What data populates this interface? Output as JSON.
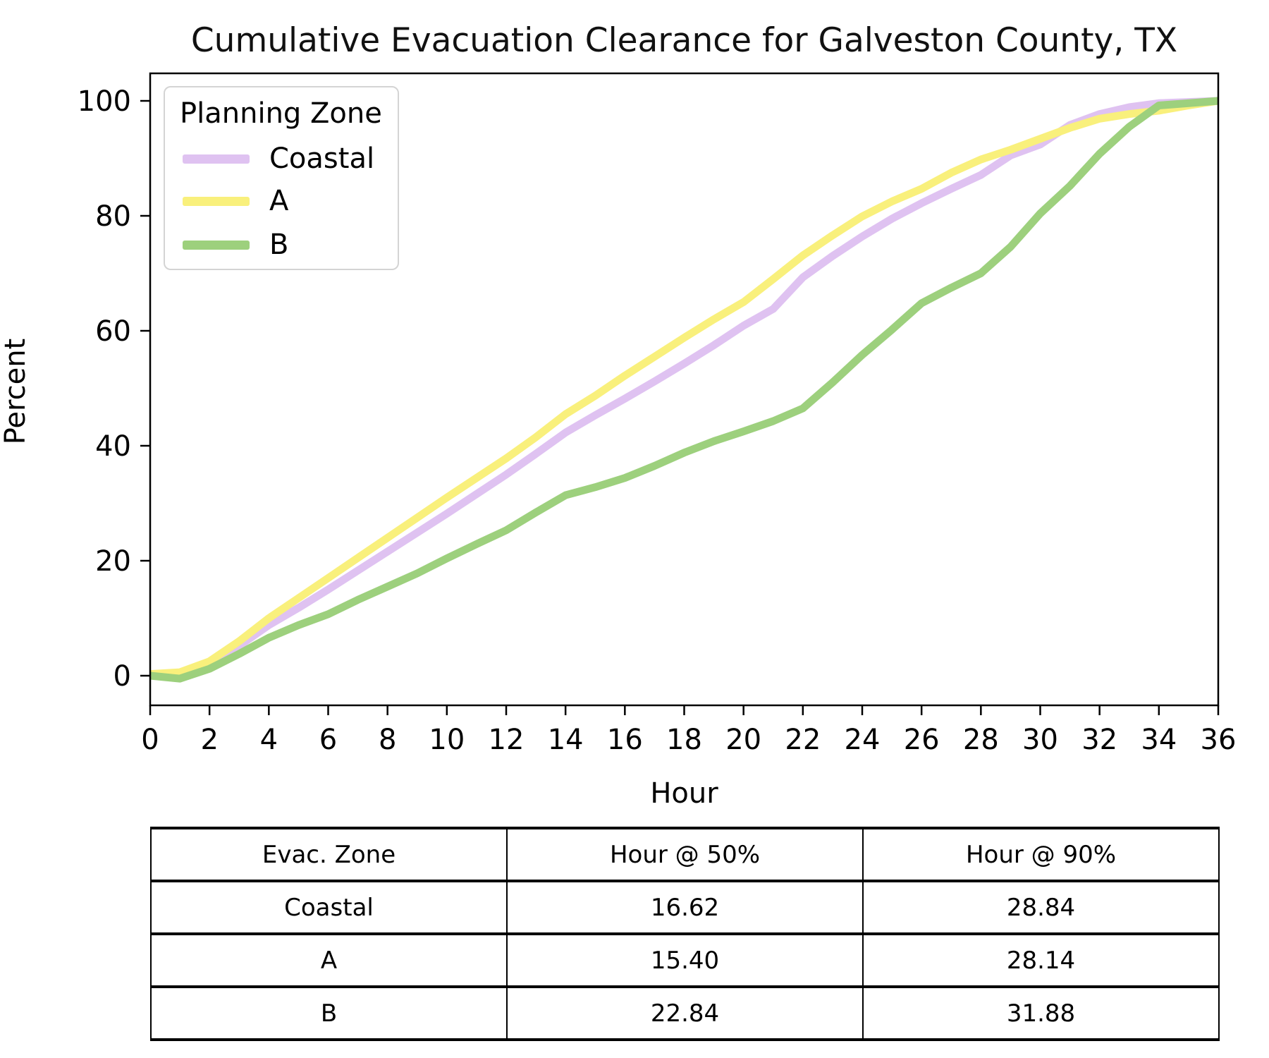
{
  "chart_data": {
    "type": "line",
    "title": "Cumulative Evacuation Clearance for Galveston County, TX",
    "xlabel": "Hour",
    "ylabel": "Percent",
    "xlim": [
      0,
      36
    ],
    "ylim": [
      0,
      100
    ],
    "x_ticks": [
      0,
      2,
      4,
      6,
      8,
      10,
      12,
      14,
      16,
      18,
      20,
      22,
      24,
      26,
      28,
      30,
      32,
      34,
      36
    ],
    "y_ticks": [
      0,
      20,
      40,
      60,
      80,
      100
    ],
    "grid": false,
    "legend": {
      "title": "Planning Zone",
      "position": "upper left"
    },
    "x": [
      0,
      1,
      2,
      3,
      4,
      5,
      6,
      7,
      8,
      9,
      10,
      11,
      12,
      13,
      14,
      15,
      16,
      17,
      18,
      19,
      20,
      21,
      22,
      23,
      24,
      25,
      26,
      27,
      28,
      29,
      30,
      31,
      32,
      33,
      34,
      35,
      36
    ],
    "series": [
      {
        "name": "Coastal",
        "color": "#dfc2f1",
        "values": [
          0.2,
          0.5,
          2.2,
          5.2,
          8.8,
          11.8,
          15.0,
          18.3,
          21.6,
          24.9,
          28.2,
          31.6,
          35.0,
          38.6,
          42.3,
          45.3,
          48.2,
          51.2,
          54.3,
          57.5,
          60.9,
          63.8,
          69.3,
          73.0,
          76.4,
          79.5,
          82.2,
          84.7,
          87.1,
          90.5,
          92.4,
          95.8,
          97.7,
          98.9,
          99.6,
          99.8,
          100.0
        ]
      },
      {
        "name": "A",
        "color": "#f9f07c",
        "values": [
          0.3,
          0.6,
          2.5,
          6.0,
          10.0,
          13.5,
          17.0,
          20.5,
          24.0,
          27.5,
          31.0,
          34.4,
          37.8,
          41.5,
          45.5,
          48.7,
          52.2,
          55.5,
          58.8,
          62.0,
          65.0,
          69.0,
          73.1,
          76.6,
          79.9,
          82.5,
          84.7,
          87.5,
          89.8,
          91.5,
          93.4,
          95.3,
          96.9,
          97.7,
          98.3,
          99.2,
          100.0
        ]
      },
      {
        "name": "B",
        "color": "#9dd07d",
        "values": [
          0.0,
          -0.5,
          1.2,
          3.8,
          6.6,
          8.8,
          10.7,
          13.2,
          15.5,
          17.8,
          20.4,
          22.9,
          25.3,
          28.4,
          31.4,
          32.8,
          34.4,
          36.5,
          38.8,
          40.8,
          42.5,
          44.3,
          46.5,
          51.0,
          55.8,
          60.2,
          64.8,
          67.5,
          70.0,
          74.6,
          80.4,
          85.2,
          90.8,
          95.5,
          99.2,
          99.6,
          100.0
        ]
      }
    ]
  },
  "table": {
    "headers": [
      "Evac. Zone",
      "Hour @ 50%",
      "Hour @ 90%"
    ],
    "rows": [
      [
        "Coastal",
        "16.62",
        "28.84"
      ],
      [
        "A",
        "15.40",
        "28.14"
      ],
      [
        "B",
        "22.84",
        "31.88"
      ]
    ]
  }
}
